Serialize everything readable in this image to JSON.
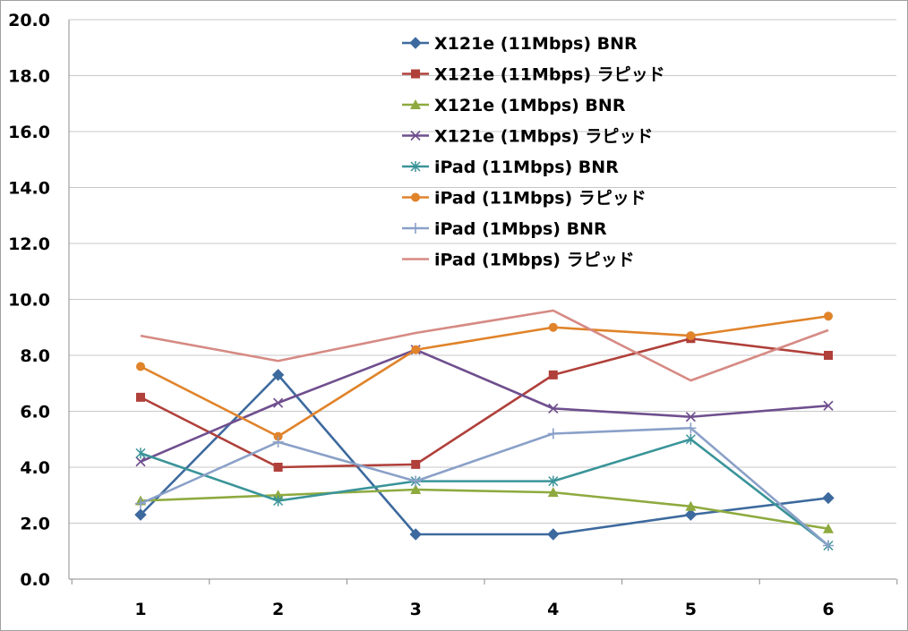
{
  "chart_data": {
    "type": "line",
    "categories": [
      "1",
      "2",
      "3",
      "4",
      "5",
      "6"
    ],
    "ylim": [
      0,
      20
    ],
    "yticks": [
      "0.0",
      "2.0",
      "4.0",
      "6.0",
      "8.0",
      "10.0",
      "12.0",
      "14.0",
      "16.0",
      "18.0",
      "20.0"
    ],
    "grid": "horizontal",
    "legend_position": "top-center",
    "series": [
      {
        "name": "X121e (11Mbps) BNR",
        "color": "#3d6a9e",
        "marker": "diamond",
        "values": [
          2.3,
          7.3,
          1.6,
          1.6,
          2.3,
          2.9
        ]
      },
      {
        "name": "X121e (11Mbps) ラピッド",
        "color": "#b0403a",
        "marker": "square",
        "values": [
          6.5,
          4.0,
          4.1,
          7.3,
          8.6,
          8.0
        ]
      },
      {
        "name": "X121e (1Mbps) BNR",
        "color": "#8eaa3f",
        "marker": "triangle",
        "values": [
          2.8,
          3.0,
          3.2,
          3.1,
          2.6,
          1.8
        ]
      },
      {
        "name": "X121e (1Mbps) ラピッド",
        "color": "#6f4f8e",
        "marker": "x",
        "values": [
          4.2,
          6.3,
          8.2,
          6.1,
          5.8,
          6.2
        ]
      },
      {
        "name": "iPad (11Mbps) BNR",
        "color": "#3a9499",
        "marker": "star",
        "values": [
          4.5,
          2.8,
          3.5,
          3.5,
          5.0,
          1.2
        ]
      },
      {
        "name": "iPad (11Mbps) ラピッド",
        "color": "#e0832a",
        "marker": "circle",
        "values": [
          7.6,
          5.1,
          8.2,
          9.0,
          8.7,
          9.4
        ]
      },
      {
        "name": "iPad (1Mbps) BNR",
        "color": "#8aa0c8",
        "marker": "plus",
        "values": [
          2.7,
          4.9,
          3.5,
          5.2,
          5.4,
          1.2
        ]
      },
      {
        "name": "iPad (1Mbps) ラピッド",
        "color": "#d68a84",
        "marker": "none",
        "values": [
          8.7,
          7.8,
          8.8,
          9.6,
          7.1,
          8.9
        ]
      }
    ]
  }
}
